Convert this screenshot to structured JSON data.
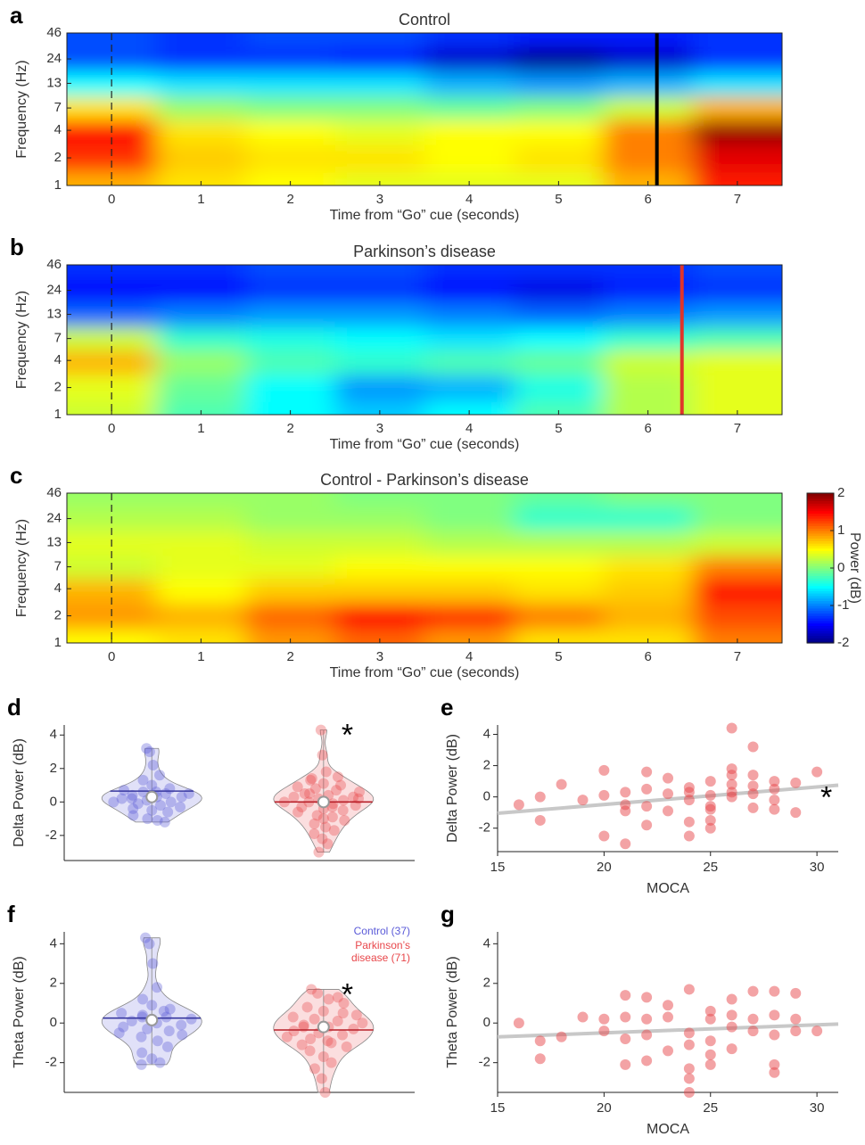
{
  "chart_data": [
    {
      "type": "heatmap",
      "label": "a",
      "title": "Control",
      "xlabel": "Time from “Go” cue (seconds)",
      "ylabel": "Frequency (Hz)",
      "x": [
        0,
        1,
        2,
        3,
        4,
        5,
        6,
        7
      ],
      "y": [
        1,
        2,
        4,
        7,
        13,
        24,
        46
      ],
      "z": [
        [
          0.8,
          0.6,
          0.5,
          0.4,
          0.4,
          0.4,
          0.8,
          1.4
        ],
        [
          1.3,
          0.7,
          0.6,
          0.6,
          0.5,
          0.6,
          1.0,
          1.6
        ],
        [
          1.5,
          0.6,
          0.5,
          0.4,
          0.5,
          0.5,
          1.0,
          1.9
        ],
        [
          0.6,
          0.1,
          0.0,
          0.0,
          -0.1,
          0.0,
          0.3,
          0.8
        ],
        [
          -0.5,
          -0.6,
          -0.6,
          -0.6,
          -0.8,
          -0.9,
          -0.8,
          -0.6
        ],
        [
          -1.2,
          -1.3,
          -1.3,
          -1.4,
          -1.7,
          -1.9,
          -1.7,
          -1.3
        ],
        [
          -1.2,
          -1.3,
          -1.2,
          -1.2,
          -1.3,
          -1.4,
          -1.4,
          -1.3
        ]
      ],
      "xlim": [
        -0.5,
        7.5
      ],
      "ylim": [
        1,
        46
      ],
      "xticks": [
        0,
        1,
        2,
        3,
        4,
        5,
        6,
        7
      ],
      "yticks": [
        1,
        2,
        4,
        7,
        13,
        24,
        46
      ],
      "yscale": "log",
      "clim": [
        -2,
        2
      ],
      "colormap": "jet",
      "event_x": 0,
      "marker": {
        "x": 6.1,
        "color": "#000000"
      }
    },
    {
      "type": "heatmap",
      "label": "b",
      "title": "Parkinson’s disease",
      "xlabel": "Time from “Go” cue (seconds)",
      "ylabel": "Frequency (Hz)",
      "x": [
        0,
        1,
        2,
        3,
        4,
        5,
        6,
        7
      ],
      "y": [
        1,
        2,
        4,
        7,
        13,
        24,
        46
      ],
      "z": [
        [
          0.3,
          -0.2,
          -0.5,
          -0.7,
          -0.5,
          -0.2,
          0.2,
          0.4
        ],
        [
          0.4,
          -0.1,
          -0.5,
          -0.9,
          -0.8,
          -0.4,
          0.2,
          0.4
        ],
        [
          0.8,
          0.1,
          -0.2,
          -0.3,
          -0.2,
          -0.1,
          0.3,
          0.4
        ],
        [
          0.3,
          -0.3,
          -0.4,
          -0.5,
          -0.6,
          -0.5,
          -0.3,
          -0.2
        ],
        [
          -1.1,
          -1.0,
          -0.9,
          -0.9,
          -1.0,
          -1.1,
          -1.0,
          -0.9
        ],
        [
          -1.5,
          -1.5,
          -1.3,
          -1.3,
          -1.5,
          -1.6,
          -1.4,
          -1.3
        ],
        [
          -1.3,
          -1.3,
          -1.2,
          -1.2,
          -1.3,
          -1.3,
          -1.3,
          -1.2
        ]
      ],
      "xlim": [
        -0.5,
        7.5
      ],
      "ylim": [
        1,
        46
      ],
      "xticks": [
        0,
        1,
        2,
        3,
        4,
        5,
        6,
        7
      ],
      "yticks": [
        1,
        2,
        4,
        7,
        13,
        24,
        46
      ],
      "yscale": "log",
      "clim": [
        -2,
        2
      ],
      "colormap": "jet",
      "event_x": 0,
      "marker": {
        "x": 6.38,
        "color": "#e0342a"
      }
    },
    {
      "type": "heatmap",
      "label": "c",
      "title": "Control - Parkinson’s disease",
      "xlabel": "Time from “Go” cue (seconds)",
      "ylabel": "Frequency (Hz)",
      "x": [
        0,
        1,
        2,
        3,
        4,
        5,
        6,
        7
      ],
      "y": [
        1,
        2,
        4,
        7,
        13,
        24,
        46
      ],
      "z": [
        [
          0.5,
          0.6,
          0.9,
          1.1,
          0.9,
          0.6,
          0.6,
          1.0
        ],
        [
          0.9,
          0.8,
          1.1,
          1.5,
          1.3,
          1.0,
          0.8,
          1.2
        ],
        [
          0.8,
          0.5,
          0.7,
          0.7,
          0.7,
          0.6,
          0.7,
          1.5
        ],
        [
          0.3,
          0.4,
          0.4,
          0.5,
          0.5,
          0.5,
          0.6,
          1.0
        ],
        [
          0.4,
          0.4,
          0.3,
          0.3,
          0.2,
          0.2,
          0.2,
          0.3
        ],
        [
          0.2,
          0.2,
          0.1,
          0.1,
          0.0,
          -0.3,
          -0.3,
          0.0
        ],
        [
          0.1,
          0.1,
          0.1,
          0.0,
          0.0,
          -0.1,
          0.0,
          0.0
        ]
      ],
      "xlim": [
        -0.5,
        7.5
      ],
      "ylim": [
        1,
        46
      ],
      "xticks": [
        0,
        1,
        2,
        3,
        4,
        5,
        6,
        7
      ],
      "yticks": [
        1,
        2,
        4,
        7,
        13,
        24,
        46
      ],
      "yscale": "log",
      "clim": [
        -2,
        2
      ],
      "colormap": "jet",
      "event_x": 0,
      "colorbar": {
        "label": "Power (dB)",
        "ticks": [
          -2,
          -1,
          0,
          1,
          2
        ]
      }
    },
    {
      "type": "violin",
      "label": "d",
      "ylabel": "Delta Power (dB)",
      "ylim": [
        -3.5,
        4.6
      ],
      "yticks": [
        -2,
        0,
        2,
        4
      ],
      "annotation": "*",
      "annotation_series": 1,
      "series": [
        {
          "color": "#5a5ad8",
          "mean_color": "#3838a0",
          "median": 0.3,
          "mean": 0.65,
          "values": [
            3.2,
            3.0,
            2.2,
            1.6,
            1.3,
            1.0,
            0.8,
            0.7,
            0.6,
            0.5,
            0.5,
            0.4,
            0.3,
            0.3,
            0.2,
            0.1,
            0.0,
            0.0,
            -0.1,
            -0.2,
            -0.3,
            -0.4,
            -0.5,
            -0.6,
            -0.8,
            -1.0,
            -1.1,
            -1.2,
            0.2,
            0.6
          ]
        },
        {
          "color": "#e8474b",
          "mean_color": "#b8202a",
          "median": 0.0,
          "mean": 0.0,
          "values": [
            4.3,
            2.8,
            1.8,
            1.5,
            1.3,
            1.1,
            1.0,
            0.9,
            0.8,
            0.7,
            0.6,
            0.5,
            0.4,
            0.3,
            0.3,
            0.2,
            0.1,
            0.0,
            0.0,
            -0.1,
            -0.2,
            -0.3,
            -0.4,
            -0.5,
            -0.6,
            -0.8,
            -0.9,
            -1.1,
            -1.3,
            -1.5,
            -1.7,
            -1.9,
            -2.2,
            -2.5,
            -3.0,
            0.5,
            -0.3,
            0.2,
            1.4,
            -1.0
          ]
        }
      ]
    },
    {
      "type": "scatter",
      "label": "e",
      "xlabel": "MOCA",
      "ylabel": "Delta Power (dB)",
      "color": "#e8474b",
      "x": [
        16,
        17,
        17,
        18,
        19,
        20,
        20,
        20,
        21,
        21,
        21,
        21,
        22,
        22,
        22,
        22,
        23,
        23,
        23,
        24,
        24,
        24,
        24,
        24,
        25,
        25,
        25,
        25,
        25,
        25,
        26,
        26,
        26,
        26,
        26,
        26,
        27,
        27,
        27,
        27,
        27,
        28,
        28,
        28,
        28,
        29,
        29,
        30
      ],
      "y": [
        -0.5,
        0,
        -1.5,
        0.8,
        -0.2,
        1.7,
        -2.5,
        0.1,
        -0.5,
        -0.9,
        -3.0,
        0.3,
        1.6,
        0.5,
        -0.6,
        -1.8,
        1.2,
        0.2,
        -0.9,
        0.6,
        0.3,
        -0.2,
        -1.6,
        -2.5,
        1.0,
        0.1,
        -0.6,
        -0.8,
        -1.5,
        -2.0,
        4.4,
        1.8,
        1.4,
        0.8,
        0.3,
        0.0,
        3.2,
        1.4,
        0.7,
        0.2,
        -0.7,
        1.0,
        0.5,
        -0.2,
        -0.8,
        0.9,
        -1.0,
        1.6
      ],
      "xlim": [
        15,
        31
      ],
      "ylim": [
        -3.5,
        4.6
      ],
      "xticks": [
        15,
        20,
        25,
        30
      ],
      "yticks": [
        -2,
        0,
        2,
        4
      ],
      "fit": {
        "x": [
          15,
          31
        ],
        "y": [
          -1.05,
          0.75
        ],
        "color": "#c8c8c8"
      },
      "annotation": "*"
    },
    {
      "type": "violin",
      "label": "f",
      "ylabel": "Theta Power (dB)",
      "ylim": [
        -3.5,
        4.6
      ],
      "yticks": [
        -2,
        0,
        2,
        4
      ],
      "annotation": "*",
      "annotation_series": 1,
      "legend": "upper right",
      "series": [
        {
          "name": "Control (37)",
          "color": "#5a5ad8",
          "mean_color": "#3838a0",
          "median": 0.15,
          "mean": 0.25,
          "values": [
            4.3,
            4.0,
            3.0,
            1.8,
            1.2,
            0.9,
            0.7,
            0.5,
            0.4,
            0.3,
            0.2,
            0.1,
            0.0,
            -0.1,
            -0.2,
            -0.3,
            -0.4,
            -0.5,
            -0.7,
            -0.9,
            -1.2,
            -1.5,
            -1.8,
            -2.0,
            -2.1,
            0.3,
            0.6,
            -0.6
          ]
        },
        {
          "name": "Parkinson’s disease (71)",
          "color": "#e8474b",
          "mean_color": "#b8202a",
          "median": -0.2,
          "mean": -0.35,
          "values": [
            1.7,
            1.5,
            1.2,
            1.0,
            0.8,
            0.6,
            0.5,
            0.3,
            0.2,
            0.1,
            0.0,
            -0.1,
            -0.2,
            -0.3,
            -0.4,
            -0.5,
            -0.6,
            -0.7,
            -0.8,
            -1.0,
            -1.2,
            -1.4,
            -1.7,
            -2.0,
            -2.3,
            -2.8,
            -3.5,
            0.4,
            -0.2,
            -0.9,
            1.3,
            -1.1
          ]
        }
      ]
    },
    {
      "type": "scatter",
      "label": "g",
      "xlabel": "MOCA",
      "ylabel": "Theta Power (dB)",
      "color": "#e8474b",
      "x": [
        16,
        17,
        17,
        18,
        19,
        20,
        20,
        21,
        21,
        21,
        21,
        22,
        22,
        22,
        22,
        23,
        23,
        23,
        24,
        24,
        24,
        24,
        24,
        24,
        25,
        25,
        25,
        25,
        25,
        26,
        26,
        26,
        26,
        27,
        27,
        27,
        28,
        28,
        28,
        28,
        28,
        29,
        29,
        29,
        30
      ],
      "y": [
        0,
        -0.9,
        -1.8,
        -0.7,
        0.3,
        0.2,
        -0.4,
        1.4,
        0.3,
        -0.8,
        -2.1,
        1.3,
        0.2,
        -0.6,
        -1.9,
        0.9,
        0.3,
        -1.4,
        1.7,
        -0.5,
        -1.1,
        -2.3,
        -2.8,
        -3.5,
        0.6,
        0.2,
        -0.9,
        -1.6,
        -2.1,
        1.2,
        0.4,
        -0.2,
        -1.3,
        1.6,
        0.2,
        -0.4,
        1.6,
        0.4,
        -0.6,
        -2.1,
        -2.5,
        1.5,
        0.2,
        -0.4,
        -0.4
      ],
      "xlim": [
        15,
        31
      ],
      "ylim": [
        -3.5,
        4.6
      ],
      "xticks": [
        15,
        20,
        25,
        30
      ],
      "yticks": [
        -2,
        0,
        2,
        4
      ],
      "fit": {
        "x": [
          15,
          31
        ],
        "y": [
          -0.7,
          -0.05
        ],
        "color": "#c8c8c8"
      }
    }
  ]
}
